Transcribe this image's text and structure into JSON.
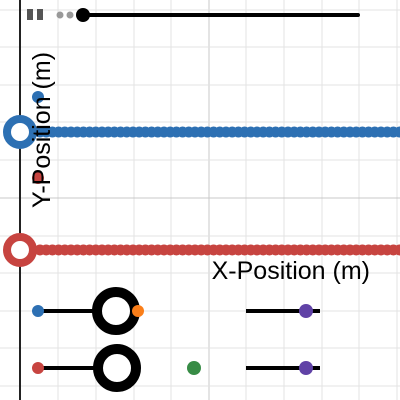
{
  "graph": {
    "y_axis_label": "Y-Position (m)",
    "x_axis_label": "X-Position (m)"
  }
}
